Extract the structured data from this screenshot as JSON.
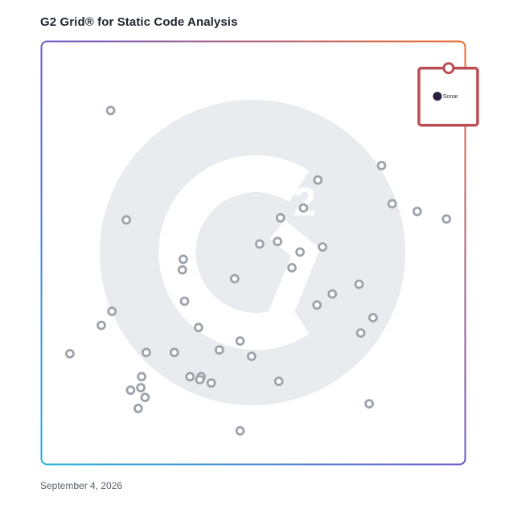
{
  "page": {
    "title": "G2 Grid® for Static Code Analysis",
    "date": "September 4, 2026"
  },
  "chart_data": {
    "type": "scatter",
    "title": "G2 Grid® for Static Code Analysis",
    "xlabel": "",
    "ylabel": "",
    "xlim": [
      0,
      100
    ],
    "ylim": [
      0,
      100
    ],
    "quadrant_dividers": {
      "x": 50,
      "y": 50
    },
    "grid": false,
    "highlighted_product": {
      "name": "Sonar",
      "x": 96,
      "y": 93.6
    },
    "points": [
      {
        "x": 16.4,
        "y": 83.6
      },
      {
        "x": 20.1,
        "y": 57.8
      },
      {
        "x": 33.5,
        "y": 48.5
      },
      {
        "x": 33.3,
        "y": 46.0
      },
      {
        "x": 16.7,
        "y": 36.2
      },
      {
        "x": 14.2,
        "y": 32.9
      },
      {
        "x": 6.8,
        "y": 26.2
      },
      {
        "x": 24.8,
        "y": 26.5
      },
      {
        "x": 31.4,
        "y": 26.5
      },
      {
        "x": 23.7,
        "y": 20.8
      },
      {
        "x": 23.5,
        "y": 18.2
      },
      {
        "x": 21.1,
        "y": 17.6
      },
      {
        "x": 24.5,
        "y": 15.9
      },
      {
        "x": 22.9,
        "y": 13.3
      },
      {
        "x": 35.1,
        "y": 20.8
      },
      {
        "x": 37.7,
        "y": 20.8
      },
      {
        "x": 40.1,
        "y": 19.3
      },
      {
        "x": 37.4,
        "y": 20.1
      },
      {
        "x": 42.0,
        "y": 27.1
      },
      {
        "x": 46.9,
        "y": 29.2
      },
      {
        "x": 49.6,
        "y": 25.6
      },
      {
        "x": 33.8,
        "y": 38.6
      },
      {
        "x": 37.1,
        "y": 32.4
      },
      {
        "x": 45.6,
        "y": 43.9
      },
      {
        "x": 46.9,
        "y": 8.0
      },
      {
        "x": 56.0,
        "y": 19.7
      },
      {
        "x": 51.5,
        "y": 52.1
      },
      {
        "x": 55.7,
        "y": 52.7
      },
      {
        "x": 56.4,
        "y": 58.3
      },
      {
        "x": 61.8,
        "y": 60.6
      },
      {
        "x": 65.2,
        "y": 67.2
      },
      {
        "x": 61.0,
        "y": 50.2
      },
      {
        "x": 59.1,
        "y": 46.5
      },
      {
        "x": 66.3,
        "y": 51.4
      },
      {
        "x": 65.0,
        "y": 37.7
      },
      {
        "x": 68.6,
        "y": 40.3
      },
      {
        "x": 74.9,
        "y": 42.6
      },
      {
        "x": 75.3,
        "y": 31.1
      },
      {
        "x": 78.2,
        "y": 34.7
      },
      {
        "x": 77.3,
        "y": 14.4
      },
      {
        "x": 80.2,
        "y": 70.6
      },
      {
        "x": 82.7,
        "y": 61.6
      },
      {
        "x": 88.6,
        "y": 59.8
      },
      {
        "x": 95.5,
        "y": 58.0
      }
    ]
  },
  "colors": {
    "marker": "#9ea3ab",
    "sonar_frame": "#b94f55",
    "watermark": "#e9ebee"
  }
}
